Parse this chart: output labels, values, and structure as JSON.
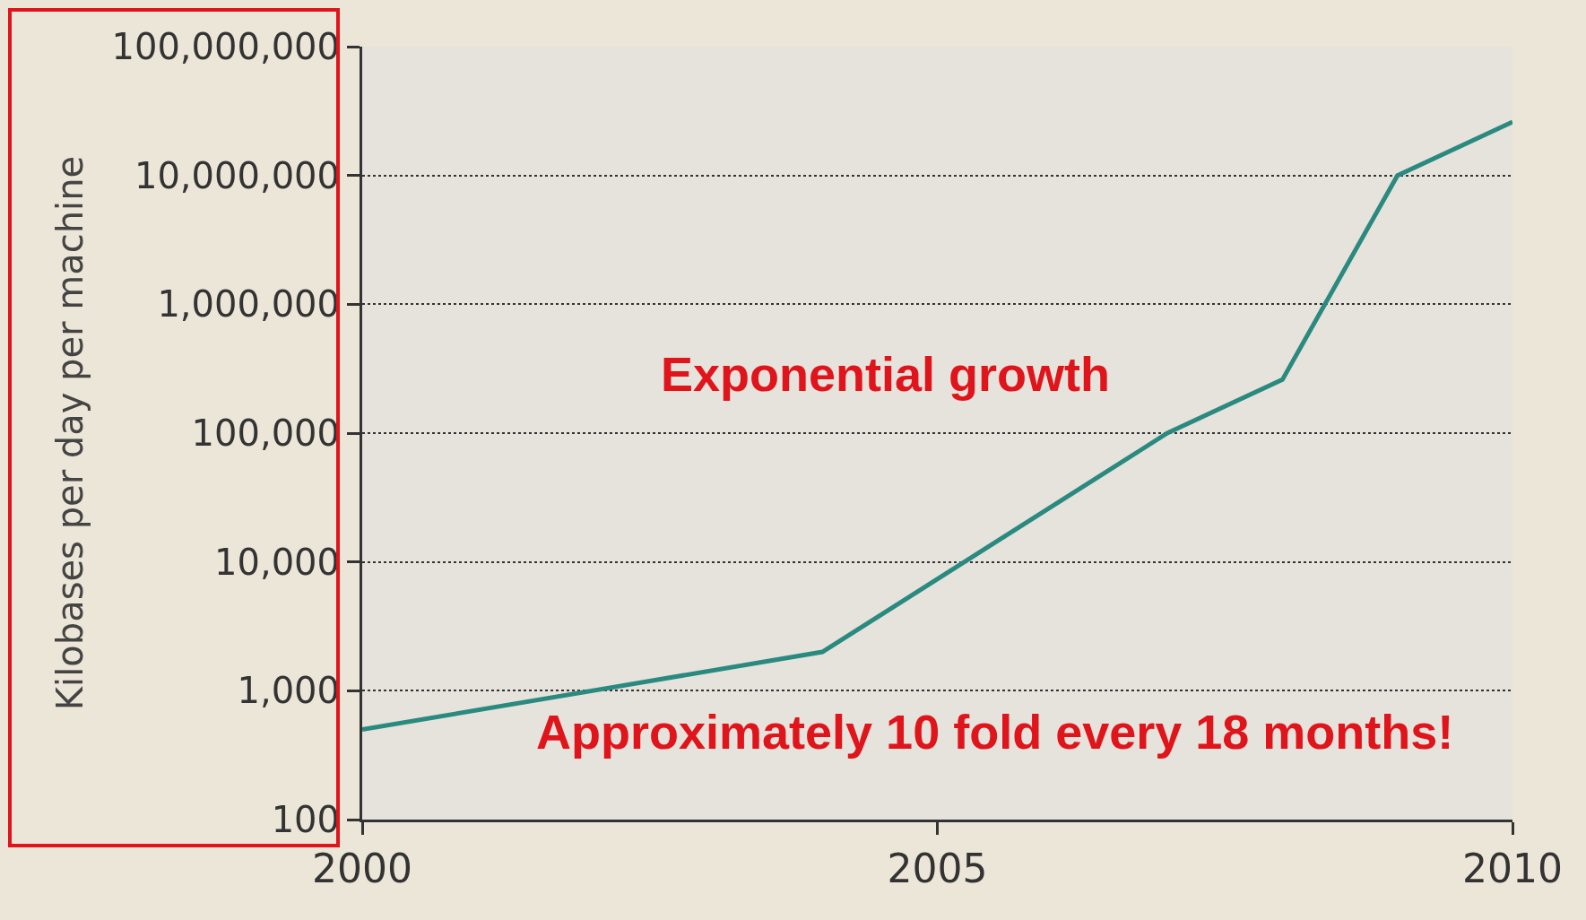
{
  "chart_data": {
    "type": "line",
    "ylabel": "Kilobases per day per machine",
    "x": [
      2000,
      2004,
      2007,
      2008,
      2009,
      2010
    ],
    "series": [
      {
        "color": "#2a8a80",
        "values": [
          500,
          2000,
          100000,
          260000,
          10000000,
          26000000
        ]
      }
    ],
    "xlim": [
      2000,
      2010
    ],
    "xticks": [
      2000,
      2005,
      2010
    ],
    "ylim": [
      100,
      100000000
    ],
    "yticks": [
      {
        "value": 100,
        "label": "100"
      },
      {
        "value": 1000,
        "label": "1,000"
      },
      {
        "value": 10000,
        "label": "10,000"
      },
      {
        "value": 100000,
        "label": "100,000"
      },
      {
        "value": 1000000,
        "label": "1,000,000"
      },
      {
        "value": 10000000,
        "label": "10,000,000"
      },
      {
        "value": 100000000,
        "label": "100,000,000"
      }
    ],
    "log": "y",
    "grid": "y",
    "marker": "none",
    "line_style": "solid",
    "annotations": [
      "Exponential growth",
      "Approximately 10 fold every 18 months!"
    ]
  }
}
